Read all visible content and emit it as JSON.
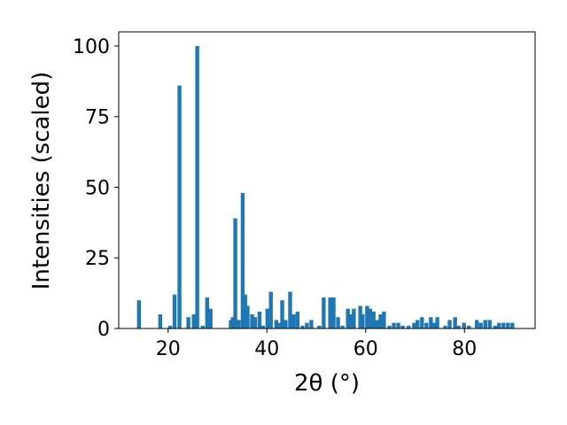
{
  "chart_data": {
    "type": "bar",
    "x": [
      14.1,
      18.4,
      20.4,
      21.3,
      22.3,
      24.1,
      25.2,
      25.9,
      27.0,
      27.9,
      28.6,
      32.7,
      33.1,
      33.6,
      34.3,
      35.1,
      35.6,
      36.1,
      37.0,
      37.6,
      38.5,
      39.2,
      40.1,
      40.8,
      41.9,
      42.4,
      43.1,
      43.8,
      44.7,
      45.4,
      46.2,
      47.2,
      48.1,
      49.0,
      50.6,
      51.5,
      52.8,
      53.5,
      54.4,
      55.3,
      56.4,
      56.9,
      57.6,
      58.9,
      59.4,
      60.3,
      60.9,
      61.6,
      62.3,
      63.0,
      63.7,
      64.8,
      65.7,
      66.6,
      67.5,
      68.7,
      69.8,
      70.5,
      71.4,
      72.3,
      73.2,
      73.8,
      74.5,
      76.1,
      77.0,
      78.1,
      78.8,
      79.9,
      80.9,
      82.5,
      83.3,
      84.2,
      85.1,
      86.2,
      87.0,
      87.9,
      88.8,
      89.7
    ],
    "values": [
      10,
      5,
      1,
      12,
      86,
      4,
      5,
      100,
      1,
      11,
      7,
      3,
      4,
      39,
      3,
      48,
      12,
      8,
      5,
      4,
      6,
      1,
      7,
      13,
      3,
      2,
      10,
      3,
      13,
      5,
      6,
      1,
      2,
      3,
      1,
      11,
      11,
      11,
      4,
      1,
      7,
      5,
      7,
      8,
      5,
      8,
      7,
      6,
      3,
      5,
      6,
      1,
      2,
      2,
      1,
      1,
      2,
      3,
      4,
      2,
      4,
      2,
      4,
      1,
      3,
      4,
      1,
      2,
      1,
      3,
      2,
      3,
      3,
      1,
      2,
      2,
      2,
      2
    ],
    "color": "#1f77b4",
    "xlabel": "2θ (°)",
    "ylabel": "Intensities (scaled)",
    "xlim": [
      10,
      94.3
    ],
    "ylim": [
      0,
      105
    ],
    "xticks": [
      20,
      40,
      60,
      80
    ],
    "yticks": [
      0,
      25,
      50,
      75,
      100
    ],
    "grid": false
  }
}
